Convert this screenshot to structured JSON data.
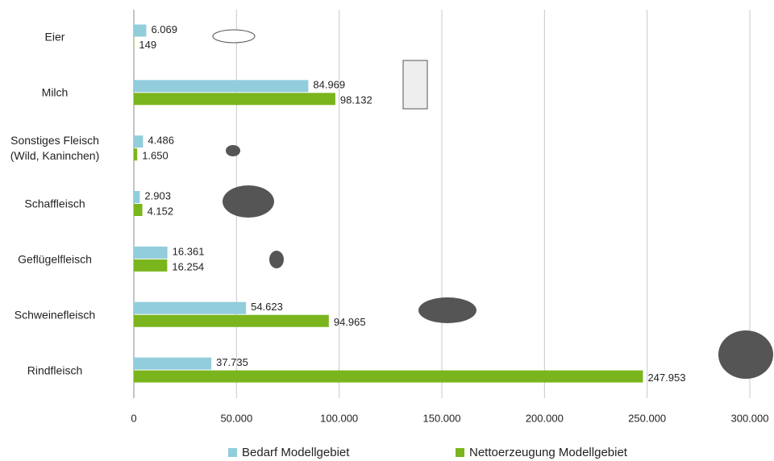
{
  "chart_data": {
    "type": "hbar",
    "categories": [
      "Eier",
      "Milch",
      "Sonstiges Fleisch\n(Wild, Kaninchen)",
      "Schaffleisch",
      "Geflügelfleisch",
      "Schweinefleisch",
      "Rindfleisch"
    ],
    "series": [
      {
        "name": "Bedarf Modellgebiet",
        "color": "#92cddc",
        "values": [
          6069,
          84969,
          4486,
          2903,
          16361,
          54623,
          37735
        ],
        "value_labels": [
          "6.069",
          "84.969",
          "4.486",
          "2.903",
          "16.361",
          "54.623",
          "37.735"
        ]
      },
      {
        "name": "Nettoerzeugung Modellgebiet",
        "color": "#7ab51d",
        "values": [
          149,
          98132,
          1650,
          4152,
          16254,
          94965,
          247953
        ],
        "value_labels": [
          "149",
          "98.132",
          "1.650",
          "4.152",
          "16.254",
          "94.965",
          "247.953"
        ]
      }
    ],
    "xlim": [
      0,
      300000
    ],
    "xticks": [
      0,
      {
        "value": 50000,
        "label": "50.000"
      },
      {
        "value": 100000,
        "label": "100.000"
      },
      {
        "value": 150000,
        "label": "150.000"
      },
      {
        "value": 200000,
        "label": "200.000"
      },
      {
        "value": 250000,
        "label": "250.000"
      },
      {
        "value": 300000,
        "label": "300.000"
      }
    ],
    "grid": true,
    "legend": "bottom"
  }
}
